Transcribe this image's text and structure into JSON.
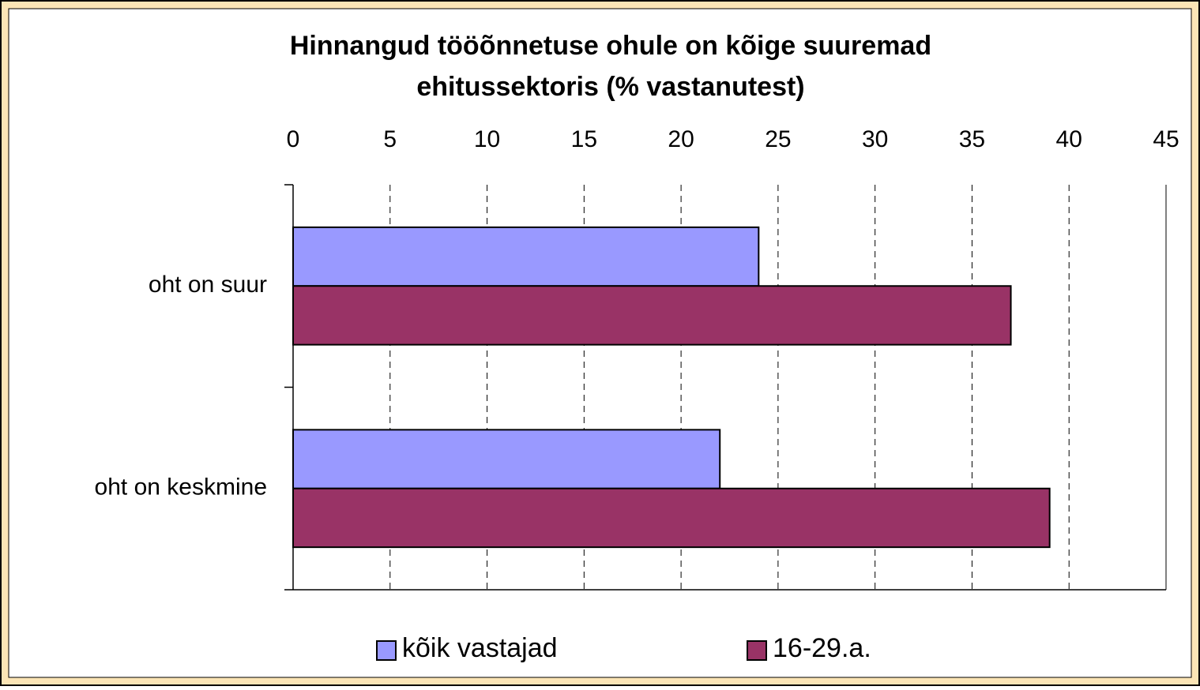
{
  "chart_data": {
    "type": "hbar",
    "title": [
      "Hinnangud tööõnnetuse ohule on kõige suuremad",
      "ehitussektoris (% vastanutest)"
    ],
    "categories": [
      "oht on suur",
      "oht on keskmine"
    ],
    "series": [
      {
        "name": "kõik vastajad",
        "color": "#9999ff",
        "values": [
          24,
          22
        ]
      },
      {
        "name": "16-29.a.",
        "color": "#993366",
        "values": [
          37,
          39
        ]
      }
    ],
    "xlim": [
      0,
      45
    ],
    "xticks": [
      0,
      5,
      10,
      15,
      20,
      25,
      30,
      35,
      40,
      45
    ],
    "grid": true,
    "legend": "bottom"
  }
}
